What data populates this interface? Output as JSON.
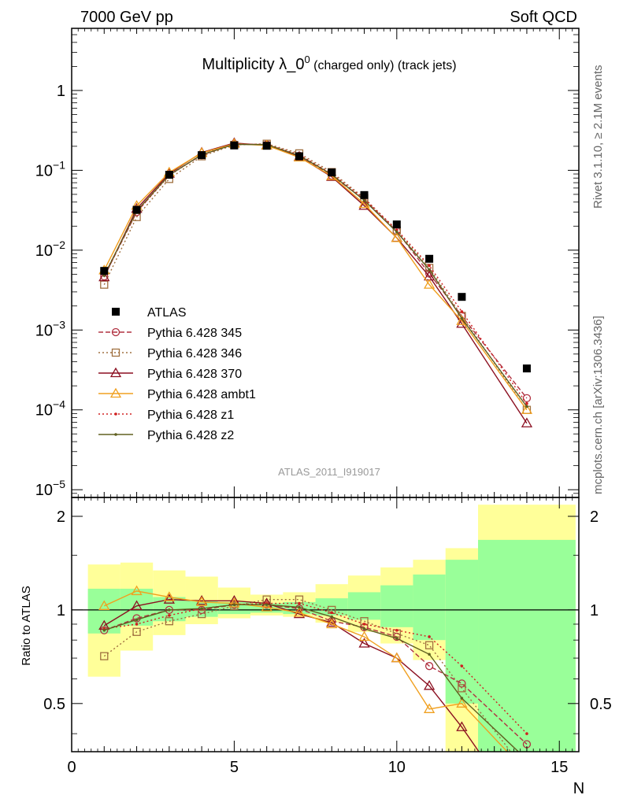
{
  "header": {
    "left": "7000 GeV pp",
    "right": "Soft QCD"
  },
  "side_labels": {
    "rivet": "Rivet 3.1.10, ≥ 2.1M events",
    "mcplots": "mcplots.cern.ch [arXiv:1306.3436]"
  },
  "chart_data": {
    "type": "line",
    "title": "Multiplicity λ_0",
    "title_sup": "0",
    "title_suffix": " (charged only) (track jets)",
    "analysis_id": "ATLAS_2011_I919017",
    "xlabel": "N",
    "ylabel_ratio": "Ratio to ATLAS",
    "xlim": [
      0,
      15.6
    ],
    "ylim_main": [
      8e-06,
      6
    ],
    "yscale_main": "log",
    "ylim_ratio": [
      0.35,
      2.3
    ],
    "yscale_ratio": "log",
    "legend_position": "middle-left",
    "main_y_ticks": [
      "10^-5",
      "10^-4",
      "10^-3",
      "10^-2",
      "10^-1",
      "1"
    ],
    "ratio_y_ticks": [
      "0.5",
      "1",
      "2"
    ],
    "x_ticks": [
      "0",
      "5",
      "10",
      "15"
    ],
    "x": [
      1,
      2,
      3,
      4,
      5,
      6,
      7,
      8,
      9,
      10,
      11,
      12,
      14
    ],
    "data": {
      "name": "ATLAS",
      "color": "#000000",
      "values": [
        0.0055,
        0.032,
        0.088,
        0.155,
        0.205,
        0.203,
        0.15,
        0.094,
        0.049,
        0.021,
        0.0078,
        0.0026,
        0.00033
      ]
    },
    "ratio_bands": {
      "edges": [
        0.5,
        1.5,
        2.5,
        3.5,
        4.5,
        5.5,
        6.5,
        7.5,
        8.5,
        9.5,
        10.5,
        11.5,
        12.5,
        15.5
      ],
      "inner_low": [
        0.84,
        0.89,
        0.92,
        0.95,
        0.97,
        0.98,
        0.97,
        0.96,
        0.93,
        0.88,
        0.8,
        0.5,
        0.3
      ],
      "inner_high": [
        1.17,
        1.17,
        1.1,
        1.07,
        1.06,
        1.05,
        1.06,
        1.09,
        1.14,
        1.2,
        1.3,
        1.45,
        1.68
      ],
      "outer_low": [
        0.61,
        0.74,
        0.83,
        0.9,
        0.94,
        0.96,
        0.95,
        0.91,
        0.85,
        0.78,
        0.69,
        0.3,
        0.3
      ],
      "outer_high": [
        1.4,
        1.42,
        1.34,
        1.28,
        1.18,
        1.12,
        1.14,
        1.21,
        1.29,
        1.37,
        1.45,
        1.58,
        2.18
      ],
      "inner_color": "#99ff99",
      "outer_color": "#ffff99"
    },
    "series": [
      {
        "name": "Pythia 6.428 345",
        "color": "#b03040",
        "dash": "6,3",
        "marker": "circle",
        "values": [
          0.0047,
          0.03,
          0.088,
          0.155,
          0.213,
          0.21,
          0.152,
          0.086,
          0.043,
          0.0173,
          0.0051,
          0.0015,
          0.00014
        ],
        "ratio": [
          0.86,
          0.94,
          1.0,
          1.0,
          1.04,
          1.04,
          1.01,
          0.92,
          0.88,
          0.82,
          0.66,
          0.58,
          0.37
        ]
      },
      {
        "name": "Pythia 6.428 346",
        "color": "#a07040",
        "dash": "2,3",
        "marker": "square",
        "values": [
          0.0037,
          0.026,
          0.078,
          0.15,
          0.208,
          0.215,
          0.163,
          0.095,
          0.045,
          0.0177,
          0.006,
          0.0015,
          0.0001
        ],
        "ratio": [
          0.71,
          0.85,
          0.92,
          0.97,
          1.03,
          1.08,
          1.08,
          1.0,
          0.92,
          0.84,
          0.77,
          0.56,
          0.3
        ]
      },
      {
        "name": "Pythia 6.428 370",
        "color": "#8b0f20",
        "dash": "",
        "marker": "triangle",
        "values": [
          0.0046,
          0.033,
          0.091,
          0.167,
          0.22,
          0.205,
          0.148,
          0.083,
          0.036,
          0.0143,
          0.0047,
          0.0012,
          6.8e-05
        ],
        "ratio": [
          0.89,
          1.03,
          1.08,
          1.07,
          1.07,
          1.05,
          0.97,
          0.91,
          0.78,
          0.7,
          0.57,
          0.42,
          0.21
        ]
      },
      {
        "name": "Pythia 6.428 ambt1",
        "color": "#f0a020",
        "dash": "",
        "marker": "triangle",
        "values": [
          0.0056,
          0.036,
          0.094,
          0.165,
          0.215,
          0.205,
          0.145,
          0.085,
          0.038,
          0.0142,
          0.0037,
          0.0013,
          0.0001
        ],
        "ratio": [
          1.03,
          1.15,
          1.1,
          1.06,
          1.05,
          1.02,
          0.98,
          0.9,
          0.82,
          0.7,
          0.48,
          0.5,
          0.3
        ]
      },
      {
        "name": "Pythia 6.428 z1",
        "color": "#d02020",
        "dash": "2,3",
        "marker": "dot",
        "values": [
          0.0049,
          0.03,
          0.086,
          0.158,
          0.212,
          0.212,
          0.157,
          0.091,
          0.044,
          0.018,
          0.0064,
          0.0017,
          0.00012
        ],
        "ratio": [
          0.87,
          0.9,
          0.96,
          1.01,
          1.04,
          1.05,
          1.05,
          0.98,
          0.9,
          0.86,
          0.82,
          0.66,
          0.4
        ]
      },
      {
        "name": "Pythia 6.428 z2",
        "color": "#606020",
        "dash": "",
        "marker": "dot",
        "values": [
          0.0048,
          0.031,
          0.087,
          0.157,
          0.211,
          0.21,
          0.153,
          0.089,
          0.042,
          0.0169,
          0.0057,
          0.0014,
          0.00011
        ],
        "ratio": [
          0.86,
          0.93,
          1.0,
          1.01,
          1.04,
          1.04,
          1.02,
          0.95,
          0.87,
          0.81,
          0.72,
          0.52,
          0.33
        ]
      }
    ]
  }
}
